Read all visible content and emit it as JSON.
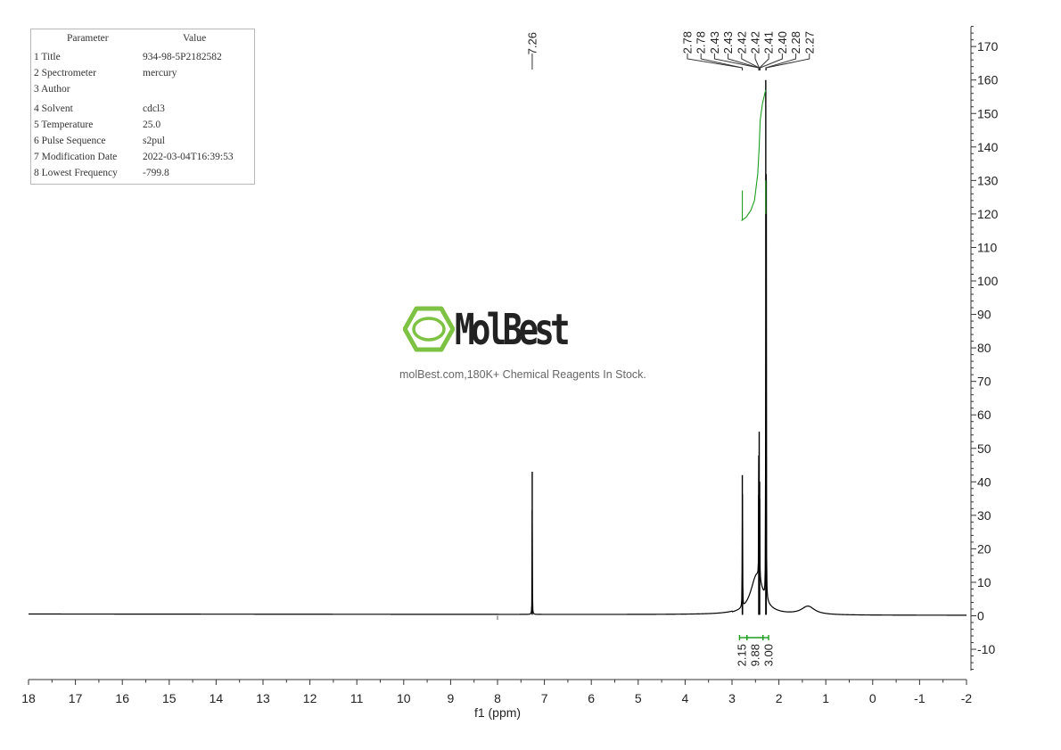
{
  "params": {
    "header": {
      "parameter": "Parameter",
      "value": "Value"
    },
    "rows": [
      {
        "name": "1 Title",
        "value": "934-98-5P2182582"
      },
      {
        "name": "2 Spectrometer",
        "value": "mercury"
      },
      {
        "name": "3 Author",
        "value": ""
      },
      {
        "name": "4 Solvent",
        "value": "cdcl3"
      },
      {
        "name": "5 Temperature",
        "value": "25.0"
      },
      {
        "name": "6 Pulse Sequence",
        "value": "s2pul"
      },
      {
        "name": "7 Modification Date",
        "value": "2022-03-04T16:39:53"
      },
      {
        "name": "8 Lowest Frequency",
        "value": "-799.8"
      }
    ]
  },
  "watermark": {
    "brand": "MolBest",
    "tagline": "molBest.com,180K+ Chemical Reagents In Stock.",
    "color": "#7dc242"
  },
  "chart_data": {
    "type": "line",
    "xlabel": "f1 (ppm)",
    "ylabel": "",
    "xlim": [
      18,
      -2
    ],
    "ylim": [
      -17,
      177
    ],
    "x_ticks": [
      18,
      17,
      16,
      15,
      14,
      13,
      12,
      11,
      10,
      9,
      8,
      7,
      6,
      5,
      4,
      3,
      2,
      1,
      0,
      -1,
      -2
    ],
    "y_ticks": [
      170,
      160,
      150,
      140,
      130,
      120,
      110,
      100,
      90,
      80,
      70,
      60,
      50,
      40,
      30,
      20,
      10,
      0,
      -10
    ],
    "peak_labels": [
      {
        "group": "left",
        "values": [
          "7.26"
        ],
        "ppm": [
          7.26
        ]
      },
      {
        "group": "right",
        "values": [
          "2.78",
          "2.78",
          "2.43",
          "2.43",
          "2.42",
          "2.42",
          "2.41",
          "2.40",
          "2.28",
          "2.27"
        ],
        "ppm": [
          2.78,
          2.78,
          2.43,
          2.43,
          2.42,
          2.42,
          2.41,
          2.4,
          2.28,
          2.27
        ]
      }
    ],
    "peaks": [
      {
        "ppm": 7.26,
        "height": 43
      },
      {
        "ppm": 2.78,
        "height": 42
      },
      {
        "ppm": 2.775,
        "height": 27
      },
      {
        "ppm": 2.43,
        "height": 36
      },
      {
        "ppm": 2.42,
        "height": 55
      },
      {
        "ppm": 2.41,
        "height": 40
      },
      {
        "ppm": 2.28,
        "height": 160
      },
      {
        "ppm": 2.27,
        "height": 130
      }
    ],
    "broad_features": [
      {
        "center": 2.47,
        "width": 0.16,
        "height": 12
      },
      {
        "center": 1.38,
        "width": 0.17,
        "height": 2.5
      }
    ],
    "integrals": [
      {
        "label": "2.15",
        "from": 2.84,
        "to": 2.68
      },
      {
        "label": "9.88",
        "from": 2.68,
        "to": 2.34
      },
      {
        "label": "3.00",
        "from": 2.34,
        "to": 2.22
      }
    ],
    "integral_color": "#1f9e1f",
    "line_color": "#000000"
  }
}
